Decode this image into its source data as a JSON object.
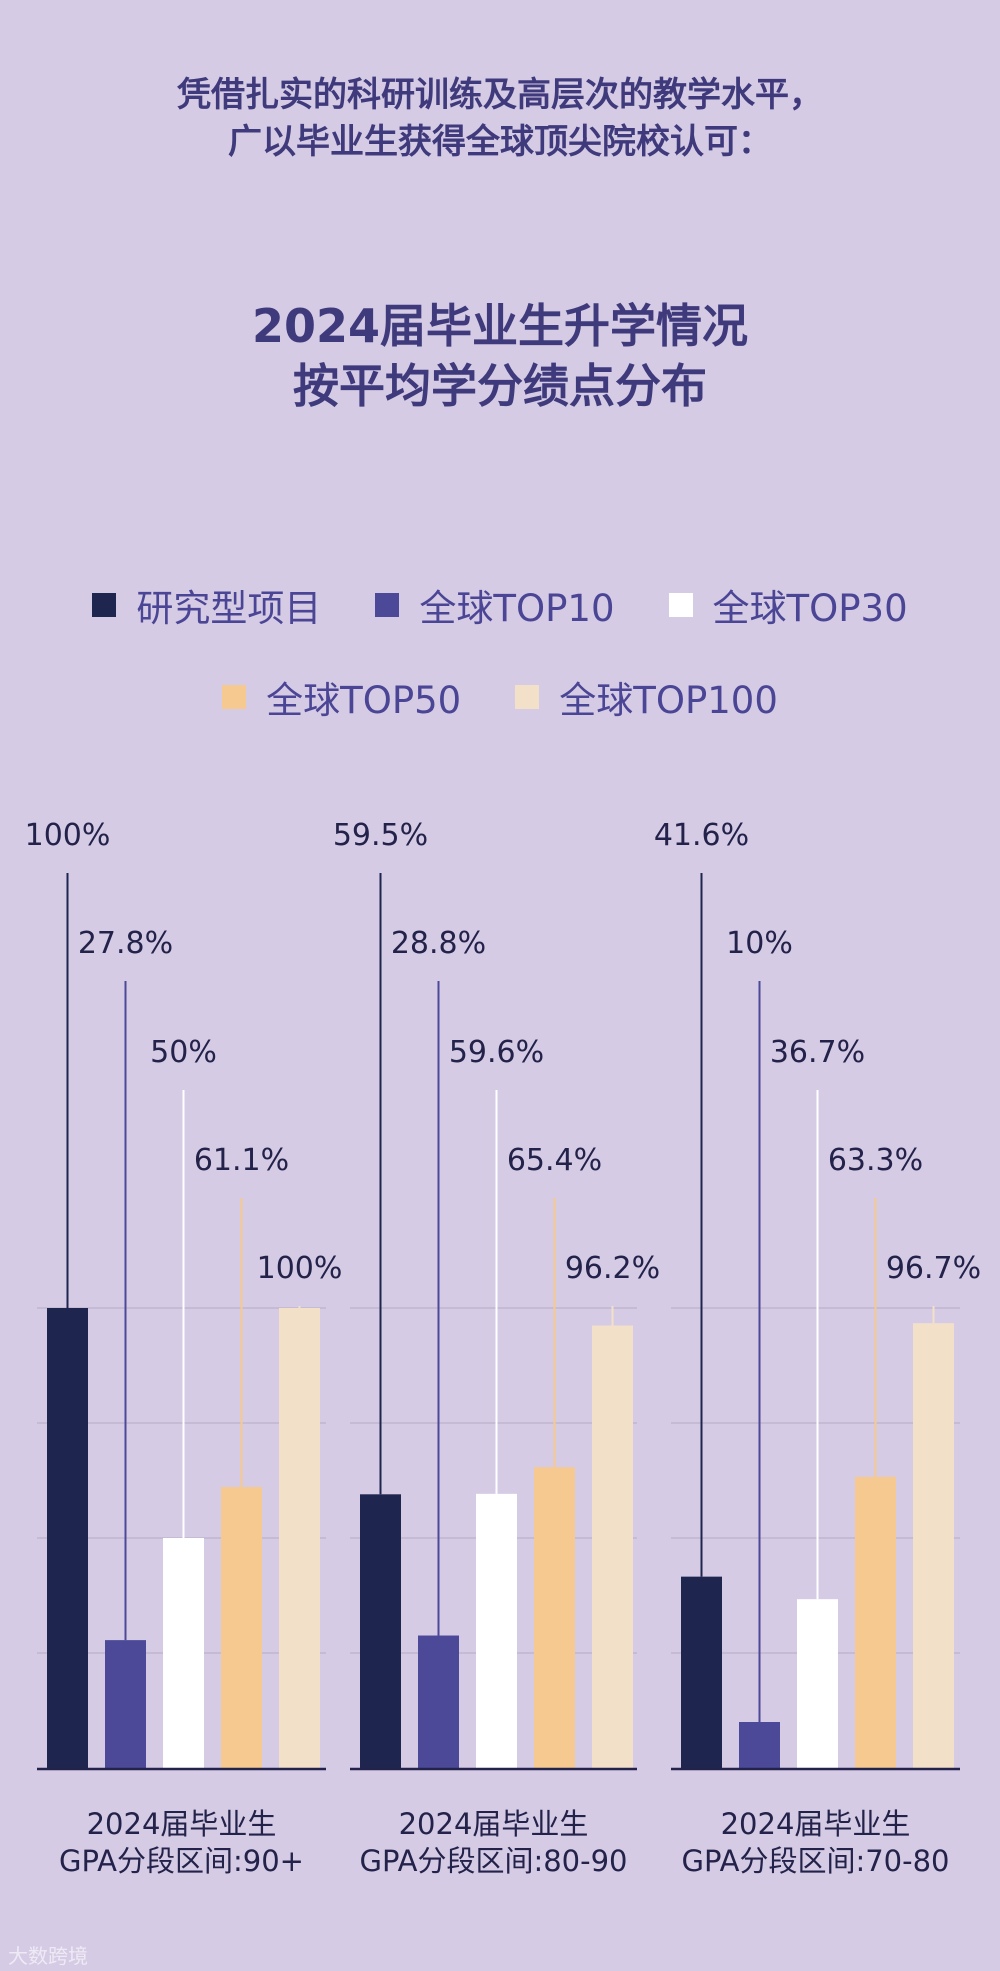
{
  "intro": {
    "line1": "凭借扎实的科研训练及高层次的教学水平，",
    "line2": "广以毕业生获得全球顶尖院校认可："
  },
  "title": {
    "line1": "2024届毕业生升学情况",
    "line2": "按平均学分绩点分布"
  },
  "legend": [
    {
      "label": "研究型项目",
      "color": "#1e2650"
    },
    {
      "label": "全球TOP10",
      "color": "#4c4a98"
    },
    {
      "label": "全球TOP30",
      "color": "#ffffff"
    },
    {
      "label": "全球TOP50",
      "color": "#f5c990"
    },
    {
      "label": "全球TOP100",
      "color": "#f3e0c9"
    }
  ],
  "watermark": "大数跨境",
  "chart_data": {
    "type": "bar",
    "ylim": [
      0,
      100
    ],
    "grid": true,
    "legend_position": "top",
    "series": [
      {
        "name": "研究型项目",
        "color": "#1e2650"
      },
      {
        "name": "全球TOP10",
        "color": "#4c4a98"
      },
      {
        "name": "全球TOP30",
        "color": "#ffffff"
      },
      {
        "name": "全球TOP50",
        "color": "#f5c990"
      },
      {
        "name": "全球TOP100",
        "color": "#f3e0c9"
      }
    ],
    "groups": [
      {
        "label_line1": "2024届毕业生",
        "label_line2": "GPA分段区间:90+",
        "values": [
          100,
          27.8,
          50,
          61.1,
          100
        ],
        "value_labels": [
          "100%",
          "27.8%",
          "50%",
          "61.1%",
          "100%"
        ]
      },
      {
        "label_line1": "2024届毕业生",
        "label_line2": "GPA分段区间:80-90",
        "values": [
          59.5,
          28.8,
          59.6,
          65.4,
          96.2
        ],
        "value_labels": [
          "59.5%",
          "28.8%",
          "59.6%",
          "65.4%",
          "96.2%"
        ]
      },
      {
        "label_line1": "2024届毕业生",
        "label_line2": "GPA分段区间:70-80",
        "values": [
          41.6,
          10,
          36.7,
          63.3,
          96.7
        ],
        "value_labels": [
          "41.6%",
          "10%",
          "36.7%",
          "63.3%",
          "96.7%"
        ]
      }
    ]
  }
}
